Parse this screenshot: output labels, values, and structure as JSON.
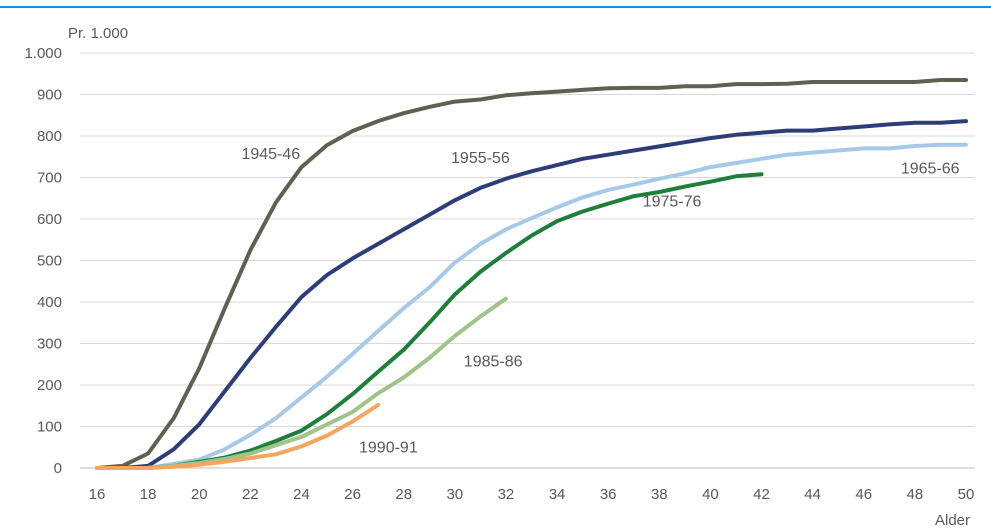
{
  "chart_data": {
    "type": "line",
    "ylabel": "Pr. 1.000",
    "xlabel": "Alder",
    "xlim": [
      16,
      50
    ],
    "ylim": [
      0,
      1000
    ],
    "grid": true,
    "x_ticks": [
      16,
      18,
      20,
      22,
      24,
      26,
      28,
      30,
      32,
      34,
      36,
      38,
      40,
      42,
      44,
      46,
      48,
      50
    ],
    "x_tick_labels": [
      "16",
      "18",
      "20",
      "22",
      "24",
      "26",
      "28",
      "30",
      "32",
      "34",
      "36",
      "38",
      "40",
      "42",
      "44",
      "46",
      "48",
      "50"
    ],
    "y_ticks": [
      0,
      100,
      200,
      300,
      400,
      500,
      600,
      700,
      800,
      900,
      1000
    ],
    "y_tick_labels": [
      "0",
      "100",
      "200",
      "300",
      "400",
      "500",
      "600",
      "700",
      "800",
      "900",
      "1.000"
    ],
    "series": [
      {
        "name": "1945-46",
        "color": "#5f5f52",
        "label_x": 22.8,
        "label_y": 745,
        "x": [
          16,
          17,
          18,
          19,
          20,
          21,
          22,
          23,
          24,
          25,
          26,
          27,
          28,
          29,
          30,
          31,
          32,
          33,
          34,
          35,
          36,
          37,
          38,
          39,
          40,
          41,
          42,
          43,
          44,
          45,
          46,
          47,
          48,
          49,
          50
        ],
        "values": [
          0,
          5,
          35,
          120,
          240,
          385,
          525,
          640,
          725,
          778,
          812,
          836,
          855,
          870,
          883,
          888,
          898,
          903,
          907,
          911,
          915,
          916,
          916,
          920,
          920,
          925,
          925,
          926,
          930,
          930,
          930,
          930,
          930,
          935,
          935
        ]
      },
      {
        "name": "1955-56",
        "color": "#2e3c78",
        "label_x": 31.0,
        "label_y": 735,
        "x": [
          16,
          17,
          18,
          19,
          20,
          21,
          22,
          23,
          24,
          25,
          26,
          27,
          28,
          29,
          30,
          31,
          32,
          33,
          34,
          35,
          36,
          37,
          38,
          39,
          40,
          41,
          42,
          43,
          44,
          45,
          46,
          47,
          48,
          49,
          50
        ],
        "values": [
          0,
          0,
          5,
          45,
          105,
          185,
          265,
          340,
          412,
          465,
          505,
          540,
          575,
          610,
          645,
          675,
          697,
          715,
          730,
          745,
          755,
          765,
          775,
          785,
          795,
          803,
          808,
          813,
          813,
          818,
          823,
          828,
          832,
          832,
          836
        ]
      },
      {
        "name": "1965-66",
        "color": "#a6c9e8",
        "label_x": 48.6,
        "label_y": 710,
        "x": [
          16,
          17,
          18,
          19,
          20,
          21,
          22,
          23,
          24,
          25,
          26,
          27,
          28,
          29,
          30,
          31,
          32,
          33,
          34,
          35,
          36,
          37,
          38,
          39,
          40,
          41,
          42,
          43,
          44,
          45,
          46,
          47,
          48,
          49,
          50
        ],
        "values": [
          0,
          0,
          0,
          10,
          20,
          45,
          80,
          120,
          170,
          220,
          275,
          330,
          385,
          435,
          495,
          540,
          575,
          602,
          628,
          652,
          670,
          683,
          697,
          710,
          725,
          735,
          745,
          755,
          760,
          765,
          770,
          770,
          776,
          779,
          779
        ]
      },
      {
        "name": "1975-76",
        "color": "#1e7f3a",
        "label_x": 38.5,
        "label_y": 630,
        "x": [
          16,
          17,
          18,
          19,
          20,
          21,
          22,
          23,
          24,
          25,
          26,
          27,
          28,
          29,
          30,
          31,
          32,
          33,
          34,
          35,
          36,
          37,
          38,
          39,
          40,
          41,
          42
        ],
        "values": [
          0,
          0,
          0,
          5,
          15,
          25,
          42,
          65,
          90,
          130,
          178,
          232,
          285,
          350,
          418,
          473,
          518,
          560,
          595,
          618,
          637,
          655,
          665,
          678,
          690,
          703,
          708
        ]
      },
      {
        "name": "1985-86",
        "color": "#9fc388",
        "label_x": 31.5,
        "label_y": 245,
        "x": [
          16,
          17,
          18,
          19,
          20,
          21,
          22,
          23,
          24,
          25,
          26,
          27,
          28,
          29,
          30,
          31,
          32
        ],
        "values": [
          0,
          0,
          0,
          5,
          12,
          22,
          35,
          55,
          75,
          105,
          135,
          180,
          218,
          265,
          318,
          365,
          408
        ]
      },
      {
        "name": "1990-91",
        "color": "#f4a55e",
        "label_x": 27.4,
        "label_y": 37,
        "x": [
          16,
          17,
          18,
          19,
          20,
          21,
          22,
          23,
          24,
          25,
          26,
          27
        ],
        "values": [
          0,
          0,
          0,
          3,
          8,
          15,
          24,
          33,
          52,
          78,
          112,
          152
        ]
      }
    ]
  }
}
